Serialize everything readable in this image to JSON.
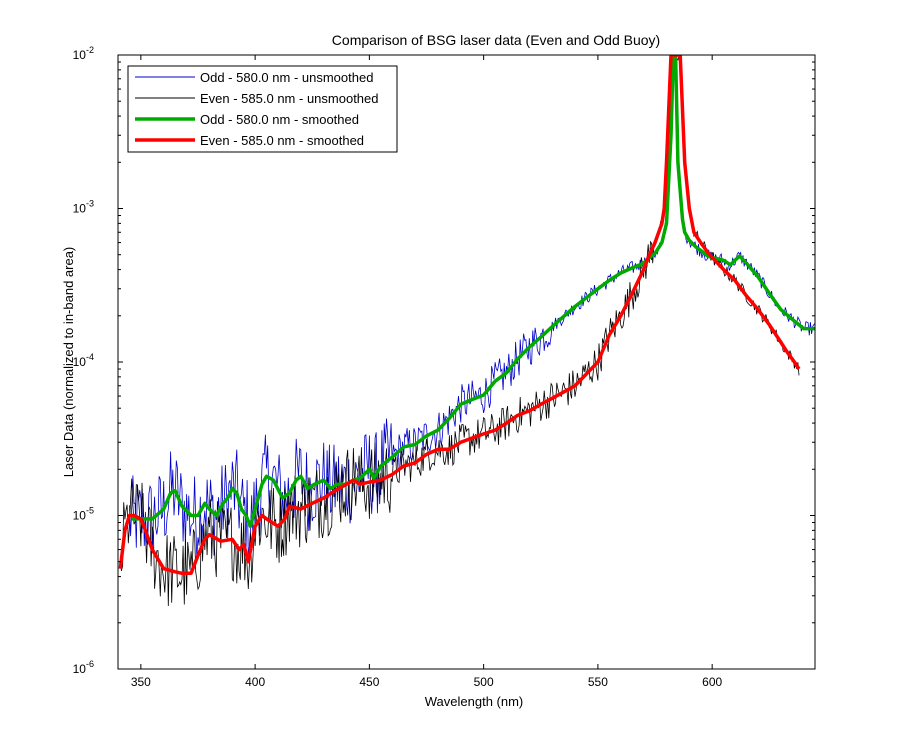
{
  "chart_data": {
    "type": "line",
    "title": "Comparison of BSG laser data (Even and Odd Buoy)",
    "xlabel": "Wavelength (nm)",
    "ylabel": "Laser Data (normalized to in-band area)",
    "xlim": [
      340,
      645
    ],
    "ylim": [
      1e-06,
      0.01
    ],
    "yscale": "log",
    "xticks": [
      350,
      400,
      450,
      500,
      550,
      600
    ],
    "yticks": [
      {
        "value": 1e-06,
        "base": "10",
        "exp": "-6"
      },
      {
        "value": 1e-05,
        "base": "10",
        "exp": "-5"
      },
      {
        "value": 0.0001,
        "base": "10",
        "exp": "-4"
      },
      {
        "value": 0.001,
        "base": "10",
        "exp": "-3"
      },
      {
        "value": 0.01,
        "base": "10",
        "exp": "-2"
      }
    ],
    "grid": false,
    "legend_position": "top-left",
    "series": [
      {
        "name": "Odd - 580.0 nm - unsmoothed",
        "color": "#0000cc",
        "style": "thin-noisy",
        "base": "odd_smoothed",
        "noise_amp": 0.13,
        "noise_until": 530,
        "x_range": [
          345,
          645
        ]
      },
      {
        "name": "Even - 585.0 nm - unsmoothed",
        "color": "#000000",
        "style": "thin-noisy",
        "base": "even_smoothed",
        "noise_amp": 0.12,
        "noise_until": 575,
        "x_range": [
          341,
          638
        ]
      },
      {
        "name": "Odd - 580.0 nm - smoothed",
        "color": "#00aa00",
        "style": "thick",
        "x": [
          346,
          350,
          355,
          360,
          363,
          365,
          368,
          372,
          375,
          378,
          380,
          383,
          386,
          388,
          390,
          392,
          394,
          396,
          398,
          400,
          403,
          405,
          408,
          412,
          415,
          418,
          420,
          423,
          426,
          430,
          433,
          436,
          440,
          443,
          446,
          450,
          452,
          455,
          460,
          465,
          470,
          475,
          480,
          485,
          490,
          495,
          500,
          505,
          510,
          515,
          520,
          525,
          530,
          540,
          550,
          555,
          560,
          565,
          570,
          572,
          575,
          578,
          580,
          582,
          583,
          584,
          585,
          586,
          587,
          588,
          590,
          593,
          596,
          598,
          600,
          605,
          608,
          610,
          612,
          615,
          620,
          625,
          630,
          635,
          640,
          645
        ],
        "y": [
          9.5e-06,
          9.5e-06,
          9.5e-06,
          1.1e-05,
          1.4e-05,
          1.45e-05,
          1.15e-05,
          1e-05,
          1e-05,
          1.2e-05,
          1.1e-05,
          1e-05,
          1.2e-05,
          1.3e-05,
          1.5e-05,
          1.4e-05,
          1.1e-05,
          1e-05,
          8.5e-06,
          1.1e-05,
          1.6e-05,
          1.8e-05,
          1.7e-05,
          1.3e-05,
          1.4e-05,
          1.7e-05,
          1.8e-05,
          1.5e-05,
          1.6e-05,
          1.7e-05,
          1.5e-05,
          1.6e-05,
          1.6e-05,
          1.7e-05,
          1.75e-05,
          2e-05,
          1.75e-05,
          2.1e-05,
          2.4e-05,
          2.8e-05,
          2.9e-05,
          3.3e-05,
          3.6e-05,
          4.3e-05,
          5.3e-05,
          5.7e-05,
          6.1e-05,
          7.5e-05,
          8.5e-05,
          0.000105,
          0.000125,
          0.000145,
          0.00017,
          0.00023,
          0.0003,
          0.00034,
          0.00038,
          0.00041,
          0.00044,
          0.00047,
          0.00051,
          0.0006,
          0.0008,
          0.003,
          0.01,
          0.01,
          0.002,
          0.0013,
          0.00085,
          0.0007,
          0.00062,
          0.00056,
          0.00052,
          0.00049,
          0.00048,
          0.00046,
          0.00043,
          0.00046,
          0.00049,
          0.00044,
          0.00036,
          0.00028,
          0.00022,
          0.00019,
          0.000165,
          0.000165
        ]
      },
      {
        "name": "Even - 585.0 nm - smoothed",
        "color": "#ff0000",
        "style": "thick",
        "x": [
          341,
          343,
          345,
          347,
          350,
          352,
          355,
          360,
          365,
          368,
          370,
          372,
          375,
          378,
          380,
          385,
          390,
          393,
          395,
          397,
          400,
          403,
          405,
          410,
          413,
          415,
          420,
          425,
          430,
          435,
          440,
          443,
          446,
          450,
          455,
          460,
          465,
          470,
          475,
          480,
          485,
          490,
          495,
          500,
          505,
          510,
          515,
          520,
          525,
          530,
          540,
          550,
          555,
          560,
          565,
          570,
          572,
          575,
          578,
          579,
          580,
          582,
          584,
          586,
          588,
          590,
          592,
          595,
          598,
          600,
          605,
          610,
          615,
          620,
          625,
          630,
          633,
          636,
          638
        ],
        "y": [
          4.5e-06,
          8e-06,
          1e-05,
          1e-05,
          9.5e-06,
          8e-06,
          6e-06,
          4.5e-06,
          4.3e-06,
          4.2e-06,
          4.2e-06,
          4.2e-06,
          5.5e-06,
          7e-06,
          7.5e-06,
          6.8e-06,
          7e-06,
          6e-06,
          6.5e-06,
          5e-06,
          8.5e-06,
          1e-05,
          9.5e-06,
          8.5e-06,
          9.5e-06,
          1.15e-05,
          1.1e-05,
          1.2e-05,
          1.3e-05,
          1.45e-05,
          1.6e-05,
          1.7e-05,
          1.6e-05,
          1.65e-05,
          1.7e-05,
          1.85e-05,
          2.1e-05,
          2.2e-05,
          2.5e-05,
          2.7e-05,
          2.7e-05,
          3e-05,
          3.2e-05,
          3.4e-05,
          3.6e-05,
          4e-05,
          4.5e-05,
          4.8e-05,
          5.3e-05,
          5.8e-05,
          7e-05,
          0.0001,
          0.00015,
          0.0002,
          0.00028,
          0.0004,
          0.00048,
          0.0006,
          0.0008,
          0.001,
          0.002,
          0.01,
          0.01,
          0.01,
          0.002,
          0.001,
          0.0007,
          0.0006,
          0.00052,
          0.00048,
          0.0004,
          0.00034,
          0.00027,
          0.00022,
          0.000175,
          0.000135,
          0.000115,
          0.0001,
          9e-05
        ]
      }
    ]
  }
}
